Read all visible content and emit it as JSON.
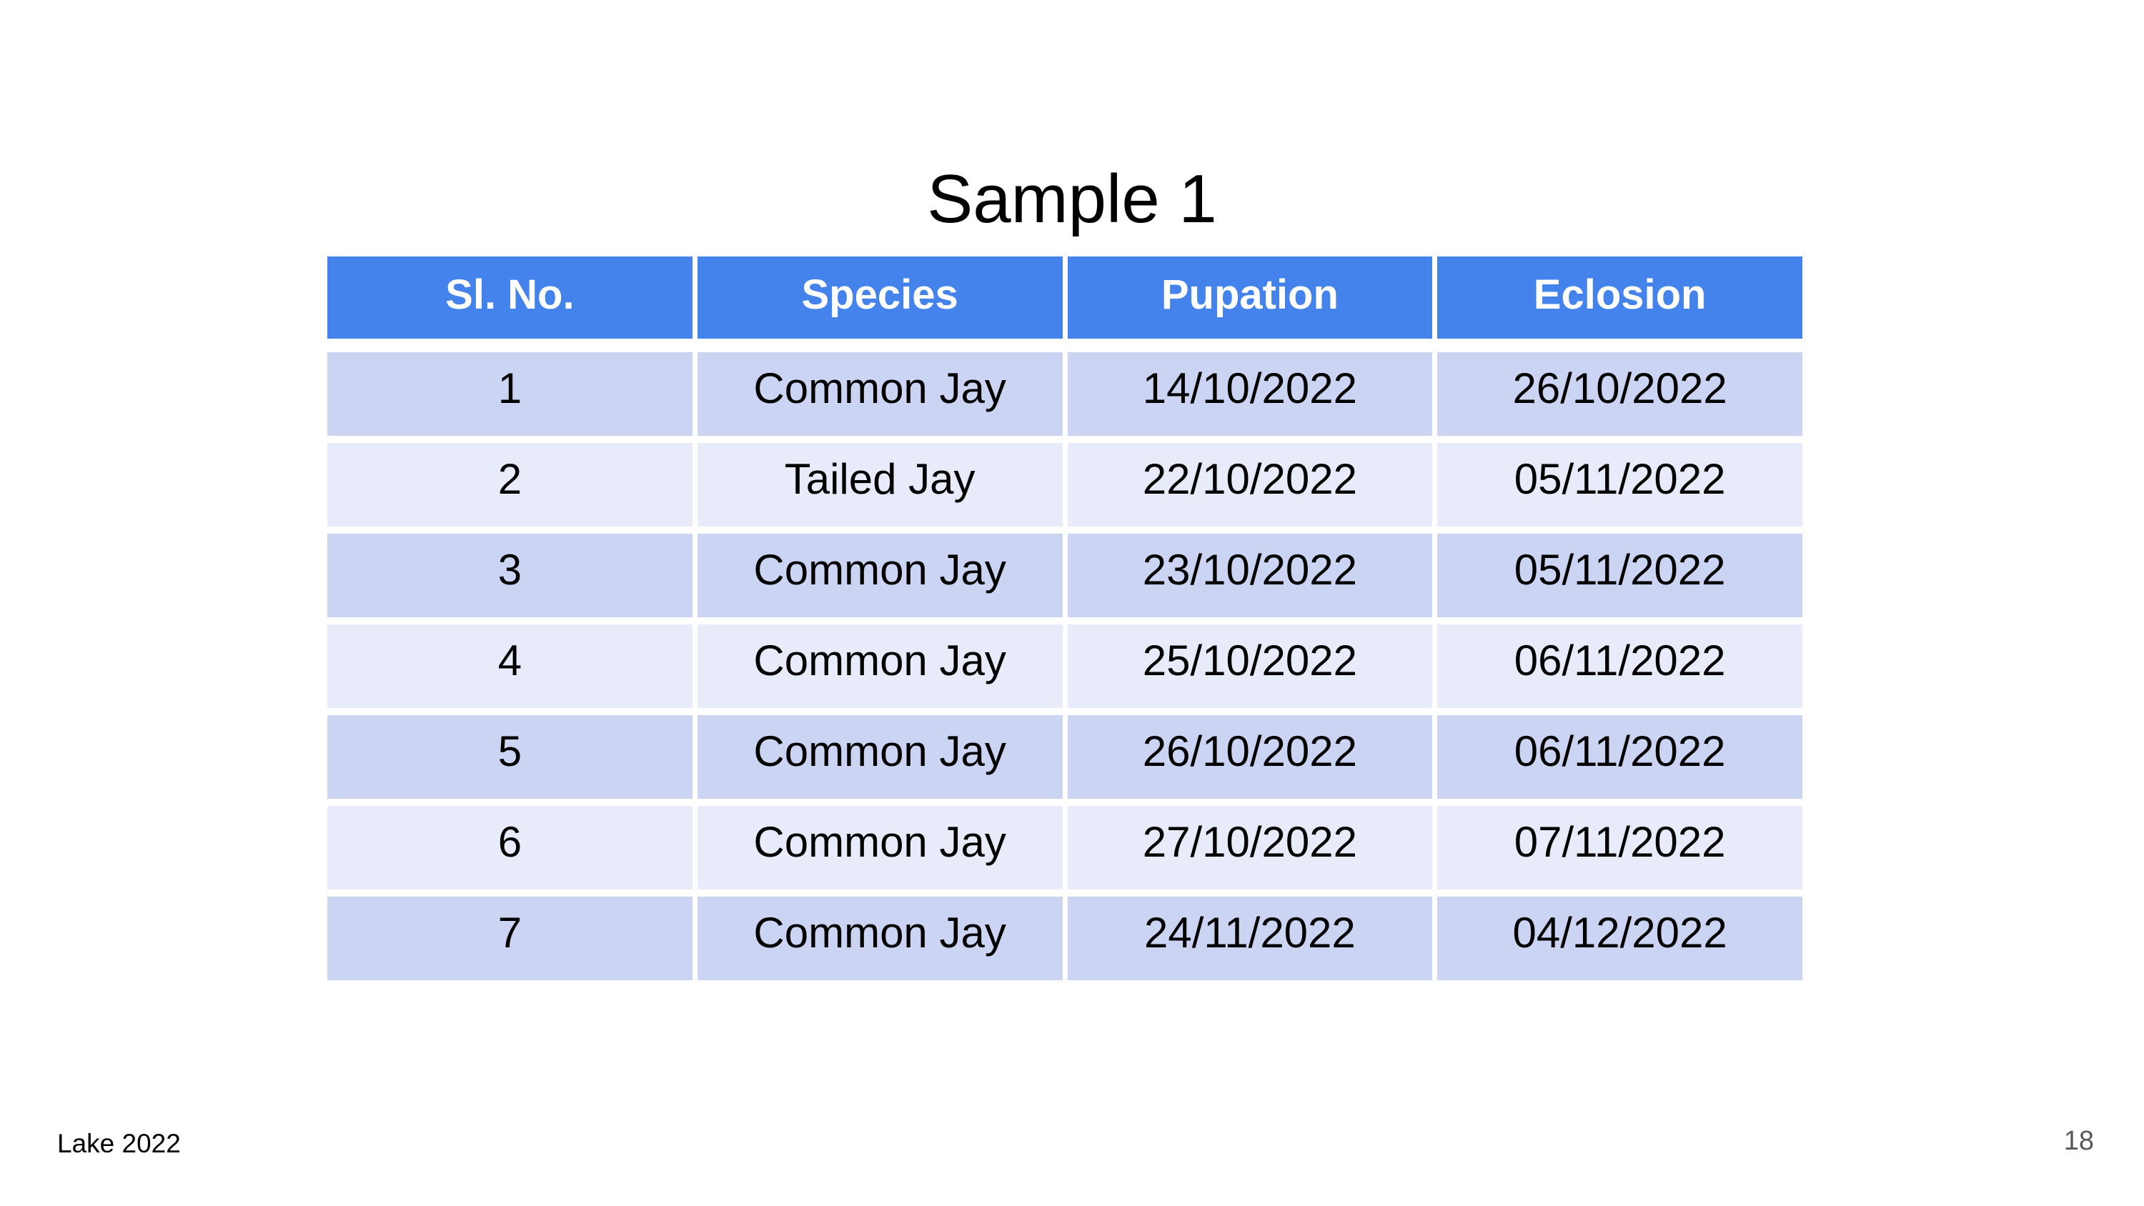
{
  "slide": {
    "title": "Sample 1",
    "footer": "Lake 2022",
    "page_number": "18"
  },
  "table": {
    "headers": [
      "Sl. No.",
      "Species",
      "Pupation",
      "Eclosion"
    ],
    "rows": [
      [
        "1",
        "Common Jay",
        "14/10/2022",
        "26/10/2022"
      ],
      [
        "2",
        "Tailed Jay",
        "22/10/2022",
        "05/11/2022"
      ],
      [
        "3",
        "Common Jay",
        "23/10/2022",
        "05/11/2022"
      ],
      [
        "4",
        "Common Jay",
        "25/10/2022",
        "06/11/2022"
      ],
      [
        "5",
        "Common Jay",
        "26/10/2022",
        "06/11/2022"
      ],
      [
        "6",
        "Common Jay",
        "27/10/2022",
        "07/11/2022"
      ],
      [
        "7",
        "Common Jay",
        "24/11/2022",
        "04/12/2022"
      ]
    ]
  },
  "colors": {
    "header_bg": "#4483EC",
    "header_text": "#FFFFFF",
    "row_odd_bg": "#CCD4F4",
    "row_even_bg": "#E8EBF9",
    "page_number_text": "#595959"
  }
}
